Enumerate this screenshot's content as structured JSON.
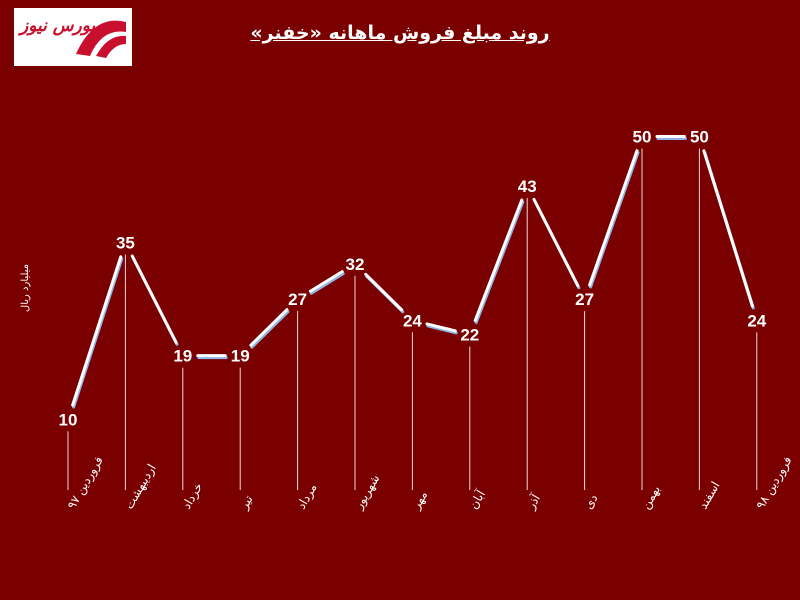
{
  "logo": {
    "text": "بورس نیوز"
  },
  "chart_data": {
    "type": "line",
    "title": "روند مبلغ فروش ماهانه «خفنر»",
    "ylabel": "میلیارد ریال",
    "categories": [
      "فروردین ۹۷",
      "اردیبهشت",
      "خرداد",
      "تیر",
      "مرداد",
      "شهریور",
      "مهر",
      "آبان",
      "آذر",
      "دی",
      "بهمن",
      "اسفند",
      "فروردین ۹۸"
    ],
    "series": [
      {
        "values": [
          10,
          35,
          19,
          19,
          27,
          32,
          24,
          22,
          43,
          27,
          50,
          50,
          24
        ]
      }
    ],
    "ylim": [
      0,
      60
    ],
    "grid": false,
    "colors": {
      "background": "#7a0000",
      "line": "#ffffff",
      "line_shadow": "#8fb4e8",
      "text": "#ffffff"
    }
  }
}
